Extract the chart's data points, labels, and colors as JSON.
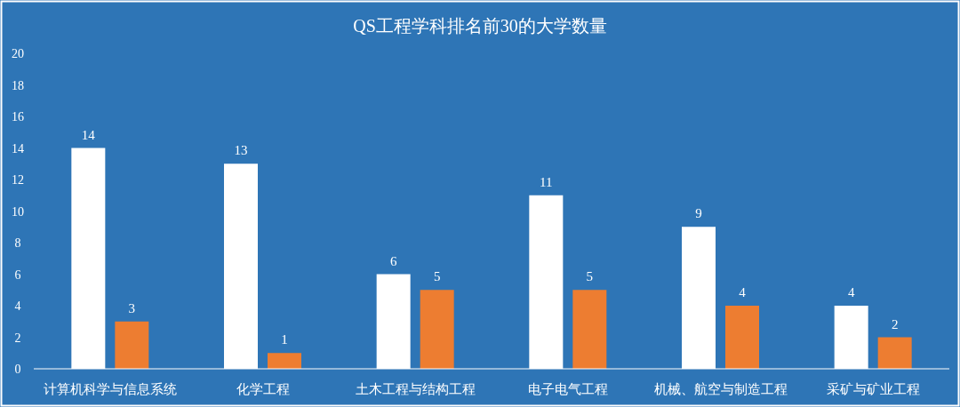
{
  "chart_data": {
    "type": "bar",
    "title": "QS工程学科排名前30的大学数量",
    "categories": [
      "计算机科学与信息系统",
      "化学工程",
      "土木工程与结构工程",
      "电子电气工程",
      "机械、航空与制造工程",
      "采矿与矿业工程"
    ],
    "series": [
      {
        "color": "#ffffff",
        "values": [
          14,
          13,
          6,
          11,
          9,
          4
        ]
      },
      {
        "color": "#ed7d31",
        "values": [
          3,
          1,
          5,
          5,
          4,
          2
        ]
      }
    ],
    "ylim": [
      0,
      20
    ],
    "yticks": [
      0,
      2,
      4,
      6,
      8,
      10,
      12,
      14,
      16,
      18,
      20
    ],
    "data_labels": true,
    "grid": false
  }
}
